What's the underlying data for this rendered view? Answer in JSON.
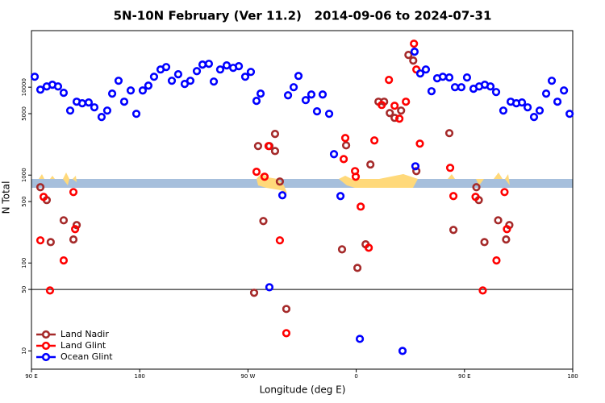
{
  "chart_data": {
    "type": "scatter",
    "title": "5N-10N February (Ver 11.2)   2014-09-06 to 2024-07-31",
    "xlabel": "Longitude (deg E)",
    "ylabel": "N Total",
    "xlim": [
      90,
      540
    ],
    "ylim": [
      6.2,
      44000
    ],
    "log_y": true,
    "xticks": [
      {
        "value": 90,
        "label": "90 E"
      },
      180,
      {
        "value": 270,
        "label": "90 W"
      },
      {
        "value": 360,
        "label": "0"
      },
      {
        "value": 450,
        "label": "90 E"
      },
      {
        "value": 540,
        "label": "180"
      }
    ],
    "yticks": [
      10,
      50,
      100,
      500,
      1000,
      5000,
      10000
    ],
    "hline": 50,
    "legend": "lower left",
    "series": [
      {
        "name": "Land Nadir",
        "color": "#a52a2a",
        "x": [
          97.4,
          102.7,
          106.0,
          116.8,
          124.9,
          127.6,
          275.1,
          278.4,
          282.8,
          287.8,
          292.5,
          292.5,
          296.5,
          301.9,
          348.2,
          351.6,
          361.0,
          367.8,
          371.8,
          378.5,
          383.2,
          387.9,
          391.9,
          397.3,
          403.4,
          407.4,
          410.0,
          437.4,
          440.8,
          459.9,
          461.9,
          466.6,
          478.0,
          484.6,
          487.3
        ],
        "values": [
          728,
          520,
          173,
          306,
          185,
          270,
          45.8,
          2140,
          300,
          2140,
          1880,
          2940,
          845,
          30,
          143,
          2180,
          88,
          163,
          1320,
          6840,
          6840,
          5080,
          4480,
          5420,
          23300,
          20100,
          1110,
          3000,
          238,
          728,
          520,
          173,
          306,
          185,
          270
        ]
      },
      {
        "name": "Land Glint",
        "color": "#ff0000",
        "x": [
          97.4,
          100.1,
          105.4,
          116.8,
          124.9,
          126.3,
          277.1,
          283.8,
          287.1,
          296.5,
          301.9,
          349.6,
          359.0,
          359.6,
          363.7,
          350.9,
          370.4,
          375.1,
          381.2,
          387.2,
          391.9,
          395.9,
          401.3,
          408.0,
          410.0,
          412.9,
          438.1,
          440.8,
          459.2,
          465.2,
          476.6,
          483.3,
          485.3
        ],
        "values": [
          181,
          565,
          48.7,
          107,
          641,
          243,
          1090,
          959,
          2140,
          181,
          15.9,
          1520,
          1110,
          959,
          438,
          2640,
          149,
          2480,
          6280,
          12100,
          6150,
          4380,
          6840,
          31260,
          15900,
          2280,
          1210,
          577,
          565,
          48.7,
          107,
          641,
          243
        ]
      },
      {
        "name": "Ocean Glint",
        "color": "#0000ff",
        "x": [
          92.7,
          97.4,
          102.7,
          107.4,
          112.1,
          116.8,
          122.2,
          127.6,
          132.2,
          137.6,
          142.3,
          148.3,
          153.0,
          157.1,
          162.4,
          167.1,
          172.5,
          177.2,
          182.5,
          187.2,
          191.9,
          197.3,
          202.0,
          206.7,
          212.0,
          217.4,
          222.1,
          227.5,
          232.2,
          237.5,
          241.6,
          246.9,
          252.3,
          257.7,
          262.4,
          267.7,
          272.4,
          277.1,
          280.5,
          298.6,
          287.8,
          303.3,
          308.0,
          312.0,
          318.0,
          322.7,
          327.4,
          332.1,
          337.5,
          341.5,
          346.9,
          363.0,
          398.5,
          409.2,
          408.5,
          413.2,
          417.9,
          422.6,
          427.3,
          432.0,
          437.4,
          442.1,
          447.4,
          452.1,
          457.5,
          462.2,
          466.9,
          471.6,
          476.3,
          482.3,
          488.4,
          493.1,
          497.8,
          502.5,
          507.8,
          512.5,
          517.9,
          522.6,
          527.3,
          532.7,
          537.4
        ],
        "values": [
          13150,
          9380,
          10200,
          10670,
          10200,
          8630,
          5420,
          6840,
          6560,
          6700,
          5900,
          4580,
          5420,
          8450,
          11840,
          6840,
          9180,
          4980,
          9180,
          10420,
          13150,
          15900,
          16950,
          11840,
          14030,
          10890,
          11840,
          15240,
          18070,
          18450,
          11590,
          15900,
          17700,
          16600,
          17330,
          13150,
          14930,
          6990,
          8450,
          590,
          53,
          8090,
          10000,
          13430,
          7130,
          8260,
          5310,
          8260,
          4980,
          1730,
          577,
          13.7,
          10,
          1260,
          25350,
          14320,
          15900,
          9000,
          12620,
          13150,
          12890,
          10000,
          10000,
          12890,
          9590,
          10200,
          10670,
          10200,
          8810,
          5420,
          6840,
          6560,
          6700,
          5900,
          4580,
          5420,
          8450,
          11840,
          6840,
          9180,
          4980
        ]
      }
    ]
  }
}
